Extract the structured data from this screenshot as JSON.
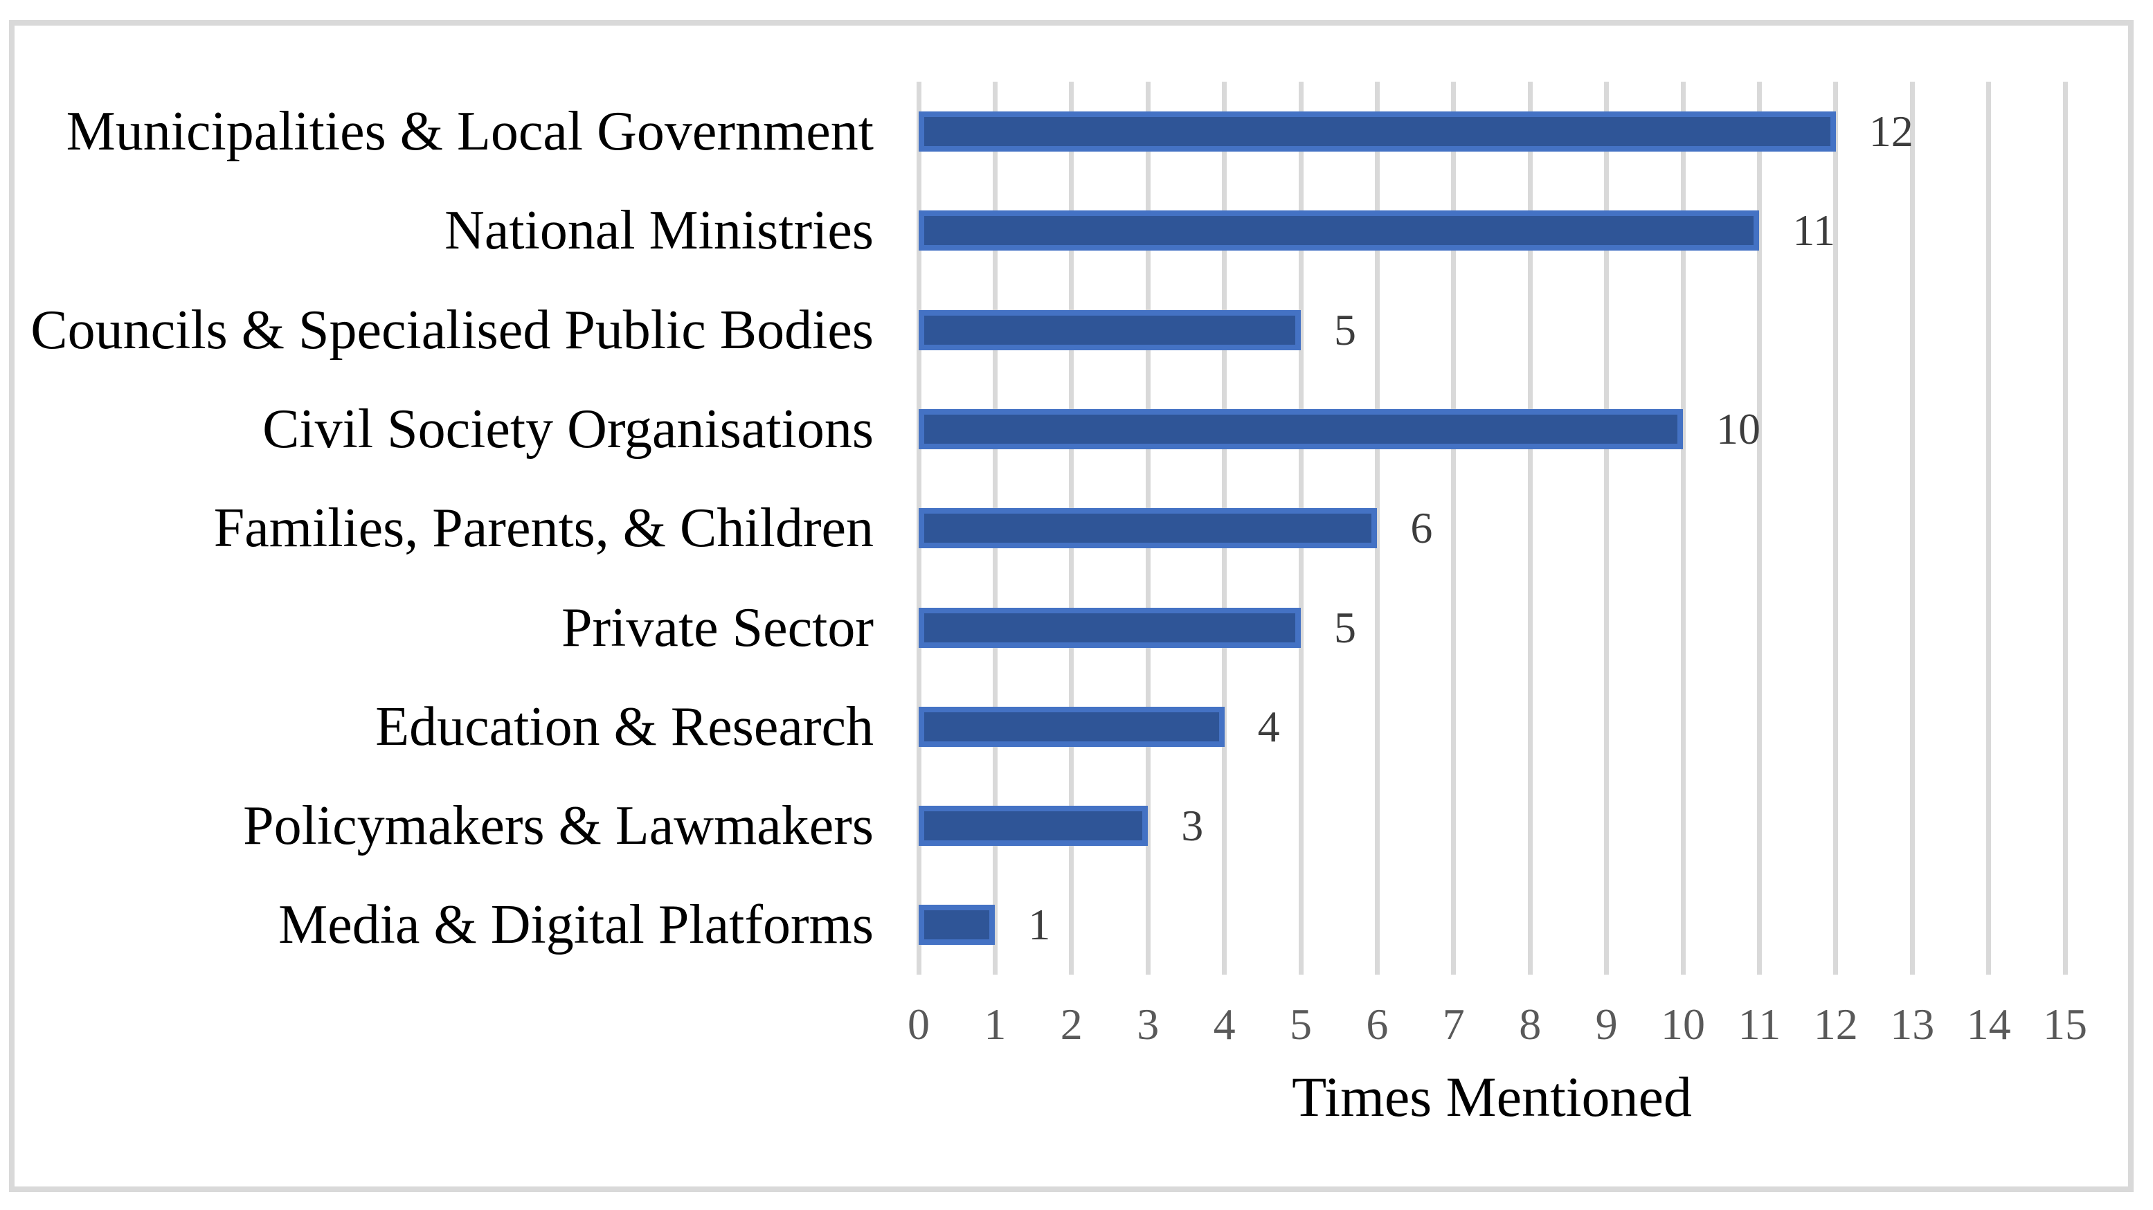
{
  "chart_data": {
    "type": "bar",
    "orientation": "horizontal",
    "title": "",
    "xlabel": "Times Mentioned",
    "ylabel": "",
    "categories": [
      "Municipalities & Local Government",
      "National Ministries",
      "Councils & Specialised Public Bodies",
      "Civil Society Organisations",
      "Families, Parents, & Children",
      "Private Sector",
      "Education & Research",
      "Policymakers & Lawmakers",
      "Media & Digital Platforms"
    ],
    "values": [
      12,
      11,
      5,
      10,
      6,
      5,
      4,
      3,
      1
    ],
    "data_labels": [
      "12",
      "11",
      "5",
      "10",
      "6",
      "5",
      "4",
      "3",
      "1"
    ],
    "xticks": [
      "0",
      "1",
      "2",
      "3",
      "4",
      "5",
      "6",
      "7",
      "8",
      "9",
      "10",
      "11",
      "12",
      "13",
      "14",
      "15"
    ],
    "xlim": [
      0,
      15
    ],
    "grid": "vertical-gridlines-on",
    "legend": "none",
    "colors": {
      "bar_fill": "#2F5597",
      "bar_border": "#4472C4",
      "gridline": "#D9D9D9",
      "frame_border": "#D9D9D9",
      "tick_label": "#595959",
      "value_label": "#3D3D3D",
      "category_label": "#000000",
      "background": "#FFFFFF"
    }
  }
}
